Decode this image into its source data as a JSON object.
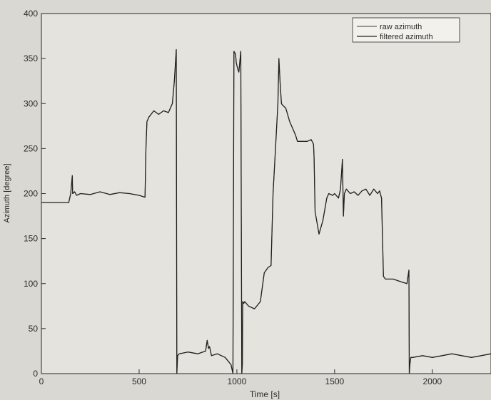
{
  "colors": {
    "paper": "#d9d8d3",
    "axes_background": "#e4e3de",
    "ink": "#2a2a2a",
    "raw_line": "#3a3a3a",
    "filtered_line": "#202020"
  },
  "chart_data": {
    "type": "line",
    "title": "",
    "xlabel": "Time [s]",
    "ylabel": "Azimuth [degree]",
    "xlim": [
      0,
      2300
    ],
    "ylim": [
      0,
      400
    ],
    "xticks": [
      0,
      500,
      1000,
      1500,
      2000
    ],
    "yticks": [
      0,
      50,
      100,
      150,
      200,
      250,
      300,
      350,
      400
    ],
    "grid": false,
    "legend": {
      "position": "top-right",
      "entries": [
        "raw azimuth",
        "filtered azimuth"
      ]
    },
    "series": [
      {
        "name": "raw azimuth",
        "x": [
          0,
          140,
          150,
          158,
          160,
          170,
          180,
          200,
          250,
          300,
          350,
          400,
          450,
          500,
          530,
          535,
          540,
          550,
          575,
          600,
          625,
          650,
          670,
          680,
          690,
          693,
          697,
          705,
          750,
          800,
          840,
          848,
          855,
          860,
          870,
          900,
          940,
          970,
          980,
          985,
          993,
          997,
          1005,
          1010,
          1020,
          1025,
          1028,
          1030,
          1035,
          1040,
          1060,
          1090,
          1120,
          1140,
          1160,
          1175,
          1185,
          1200,
          1210,
          1215,
          1222,
          1228,
          1235,
          1250,
          1270,
          1300,
          1310,
          1330,
          1360,
          1380,
          1392,
          1395,
          1400,
          1420,
          1440,
          1460,
          1470,
          1490,
          1500,
          1520,
          1530,
          1540,
          1545,
          1550,
          1560,
          1580,
          1600,
          1620,
          1640,
          1660,
          1680,
          1700,
          1720,
          1730,
          1740,
          1745,
          1750,
          1760,
          1800,
          1840,
          1870,
          1880,
          1882,
          1885,
          1890,
          1900,
          1950,
          2000,
          2050,
          2100,
          2150,
          2200,
          2250,
          2300
        ],
        "y": [
          190,
          190,
          200,
          220,
          200,
          202,
          198,
          200,
          199,
          202,
          199,
          201,
          200,
          198,
          196,
          250,
          280,
          285,
          292,
          288,
          292,
          290,
          300,
          325,
          360,
          0,
          20,
          22,
          24,
          22,
          25,
          37,
          28,
          30,
          20,
          22,
          18,
          10,
          0,
          358,
          355,
          345,
          338,
          335,
          358,
          0,
          10,
          80,
          78,
          80,
          75,
          72,
          80,
          112,
          118,
          120,
          200,
          260,
          300,
          350,
          320,
          300,
          298,
          295,
          280,
          265,
          258,
          258,
          258,
          260,
          255,
          240,
          180,
          155,
          170,
          195,
          200,
          198,
          200,
          195,
          205,
          238,
          175,
          200,
          205,
          200,
          202,
          198,
          203,
          205,
          198,
          205,
          200,
          203,
          195,
          150,
          108,
          105,
          105,
          102,
          100,
          115,
          0,
          10,
          18,
          18,
          20,
          18,
          20,
          22,
          20,
          18,
          20,
          22
        ]
      },
      {
        "name": "filtered azimuth",
        "x": [
          0,
          140,
          150,
          158,
          160,
          170,
          180,
          200,
          250,
          300,
          350,
          400,
          450,
          500,
          530,
          535,
          540,
          550,
          575,
          600,
          625,
          650,
          670,
          680,
          690,
          693,
          697,
          705,
          750,
          800,
          840,
          848,
          855,
          860,
          870,
          900,
          940,
          970,
          980,
          985,
          993,
          997,
          1005,
          1010,
          1020,
          1025,
          1028,
          1030,
          1035,
          1040,
          1060,
          1090,
          1120,
          1140,
          1160,
          1175,
          1185,
          1200,
          1210,
          1215,
          1222,
          1228,
          1235,
          1250,
          1270,
          1300,
          1310,
          1330,
          1360,
          1380,
          1392,
          1395,
          1400,
          1420,
          1440,
          1460,
          1470,
          1490,
          1500,
          1520,
          1530,
          1540,
          1545,
          1550,
          1560,
          1580,
          1600,
          1620,
          1640,
          1660,
          1680,
          1700,
          1720,
          1730,
          1740,
          1745,
          1750,
          1760,
          1800,
          1840,
          1870,
          1880,
          1882,
          1885,
          1890,
          1900,
          1950,
          2000,
          2050,
          2100,
          2150,
          2200,
          2250,
          2300
        ],
        "y": [
          190,
          190,
          200,
          220,
          200,
          202,
          198,
          200,
          199,
          202,
          199,
          201,
          200,
          198,
          196,
          250,
          280,
          285,
          292,
          288,
          292,
          290,
          300,
          325,
          360,
          0,
          20,
          22,
          24,
          22,
          25,
          37,
          28,
          30,
          20,
          22,
          18,
          10,
          0,
          358,
          355,
          345,
          338,
          335,
          358,
          0,
          10,
          80,
          78,
          80,
          75,
          72,
          80,
          112,
          118,
          120,
          200,
          260,
          300,
          350,
          320,
          300,
          298,
          295,
          280,
          265,
          258,
          258,
          258,
          260,
          255,
          240,
          180,
          155,
          170,
          195,
          200,
          198,
          200,
          195,
          205,
          238,
          175,
          200,
          205,
          200,
          202,
          198,
          203,
          205,
          198,
          205,
          200,
          203,
          195,
          150,
          108,
          105,
          105,
          102,
          100,
          115,
          0,
          10,
          18,
          18,
          20,
          18,
          20,
          22,
          20,
          18,
          20,
          22
        ]
      }
    ]
  }
}
